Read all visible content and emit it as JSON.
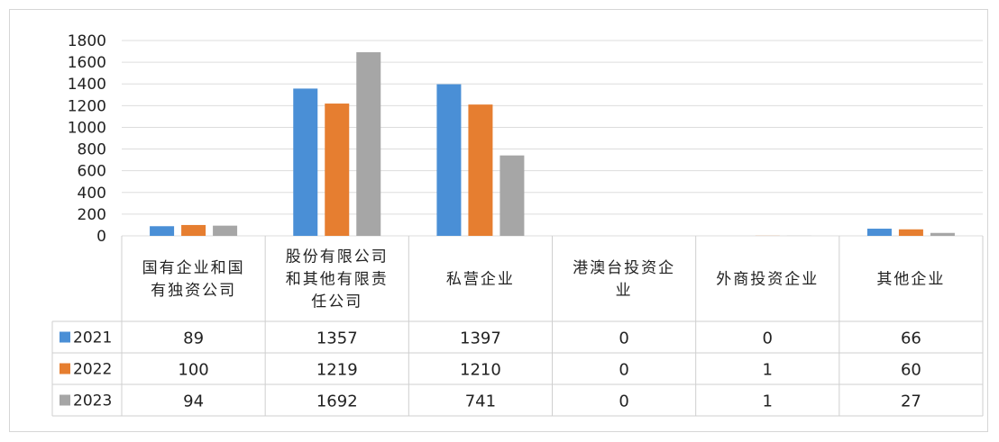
{
  "chart_data": {
    "type": "bar",
    "title": "",
    "xlabel": "",
    "ylabel": "",
    "ylim": [
      0,
      1800
    ],
    "yticks": [
      0,
      200,
      400,
      600,
      800,
      1000,
      1200,
      1400,
      1600,
      1800
    ],
    "grid": true,
    "legend": "data-table-left",
    "categories": [
      [
        "国有企业和国",
        "有独资公司"
      ],
      [
        "股份有限公司",
        "和其他有限责",
        "任公司"
      ],
      [
        "私营企业"
      ],
      [
        "港澳台投资企",
        "业"
      ],
      [
        "外商投资企业"
      ],
      [
        "其他企业"
      ]
    ],
    "series": [
      {
        "name": "2021",
        "color": "#4a8fd6",
        "values": [
          89,
          1357,
          1397,
          0,
          0,
          66
        ]
      },
      {
        "name": "2022",
        "color": "#e67e30",
        "values": [
          100,
          1219,
          1210,
          0,
          1,
          60
        ]
      },
      {
        "name": "2023",
        "color": "#a6a6a6",
        "values": [
          94,
          1692,
          741,
          0,
          1,
          27
        ]
      }
    ]
  }
}
